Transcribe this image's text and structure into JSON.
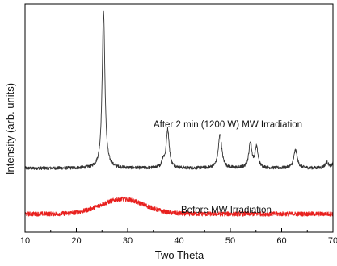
{
  "chart_data": {
    "type": "line",
    "title": "",
    "xlabel": "Two Theta",
    "ylabel": "Intensity (arb. units)",
    "xlim": [
      10,
      70
    ],
    "ylim": [
      0,
      100
    ],
    "x_ticks": [
      "10",
      "20",
      "30",
      "40",
      "50",
      "60",
      "70"
    ],
    "grid": false,
    "y_tick_labels_shown": false,
    "annotations": [
      "After 2 min (1200 W) MW Irradiation",
      "Before MW Irradiation"
    ],
    "series": [
      {
        "color": "#333333",
        "label": "After 2 min (1200 W) MW Irradiation",
        "baseline": 28,
        "noise": 0.7,
        "peaks": [
          {
            "x": 25.3,
            "height": 69,
            "width": 0.32
          },
          {
            "x": 37.8,
            "height": 17,
            "width": 0.35
          },
          {
            "x": 36.9,
            "height": 3,
            "width": 0.3
          },
          {
            "x": 48.0,
            "height": 15,
            "width": 0.4
          },
          {
            "x": 53.9,
            "height": 11,
            "width": 0.35
          },
          {
            "x": 55.1,
            "height": 9,
            "width": 0.35
          },
          {
            "x": 62.7,
            "height": 8,
            "width": 0.4
          },
          {
            "x": 68.8,
            "height": 2.5,
            "width": 0.4
          },
          {
            "x": 70.3,
            "height": 3,
            "width": 0.4
          }
        ]
      },
      {
        "color": "#e8201e",
        "label": "Before MW Irradiation",
        "baseline": 8,
        "noise": 1.0,
        "humps": [
          {
            "x": 29,
            "height": 6.5,
            "width": 6
          }
        ]
      }
    ]
  }
}
